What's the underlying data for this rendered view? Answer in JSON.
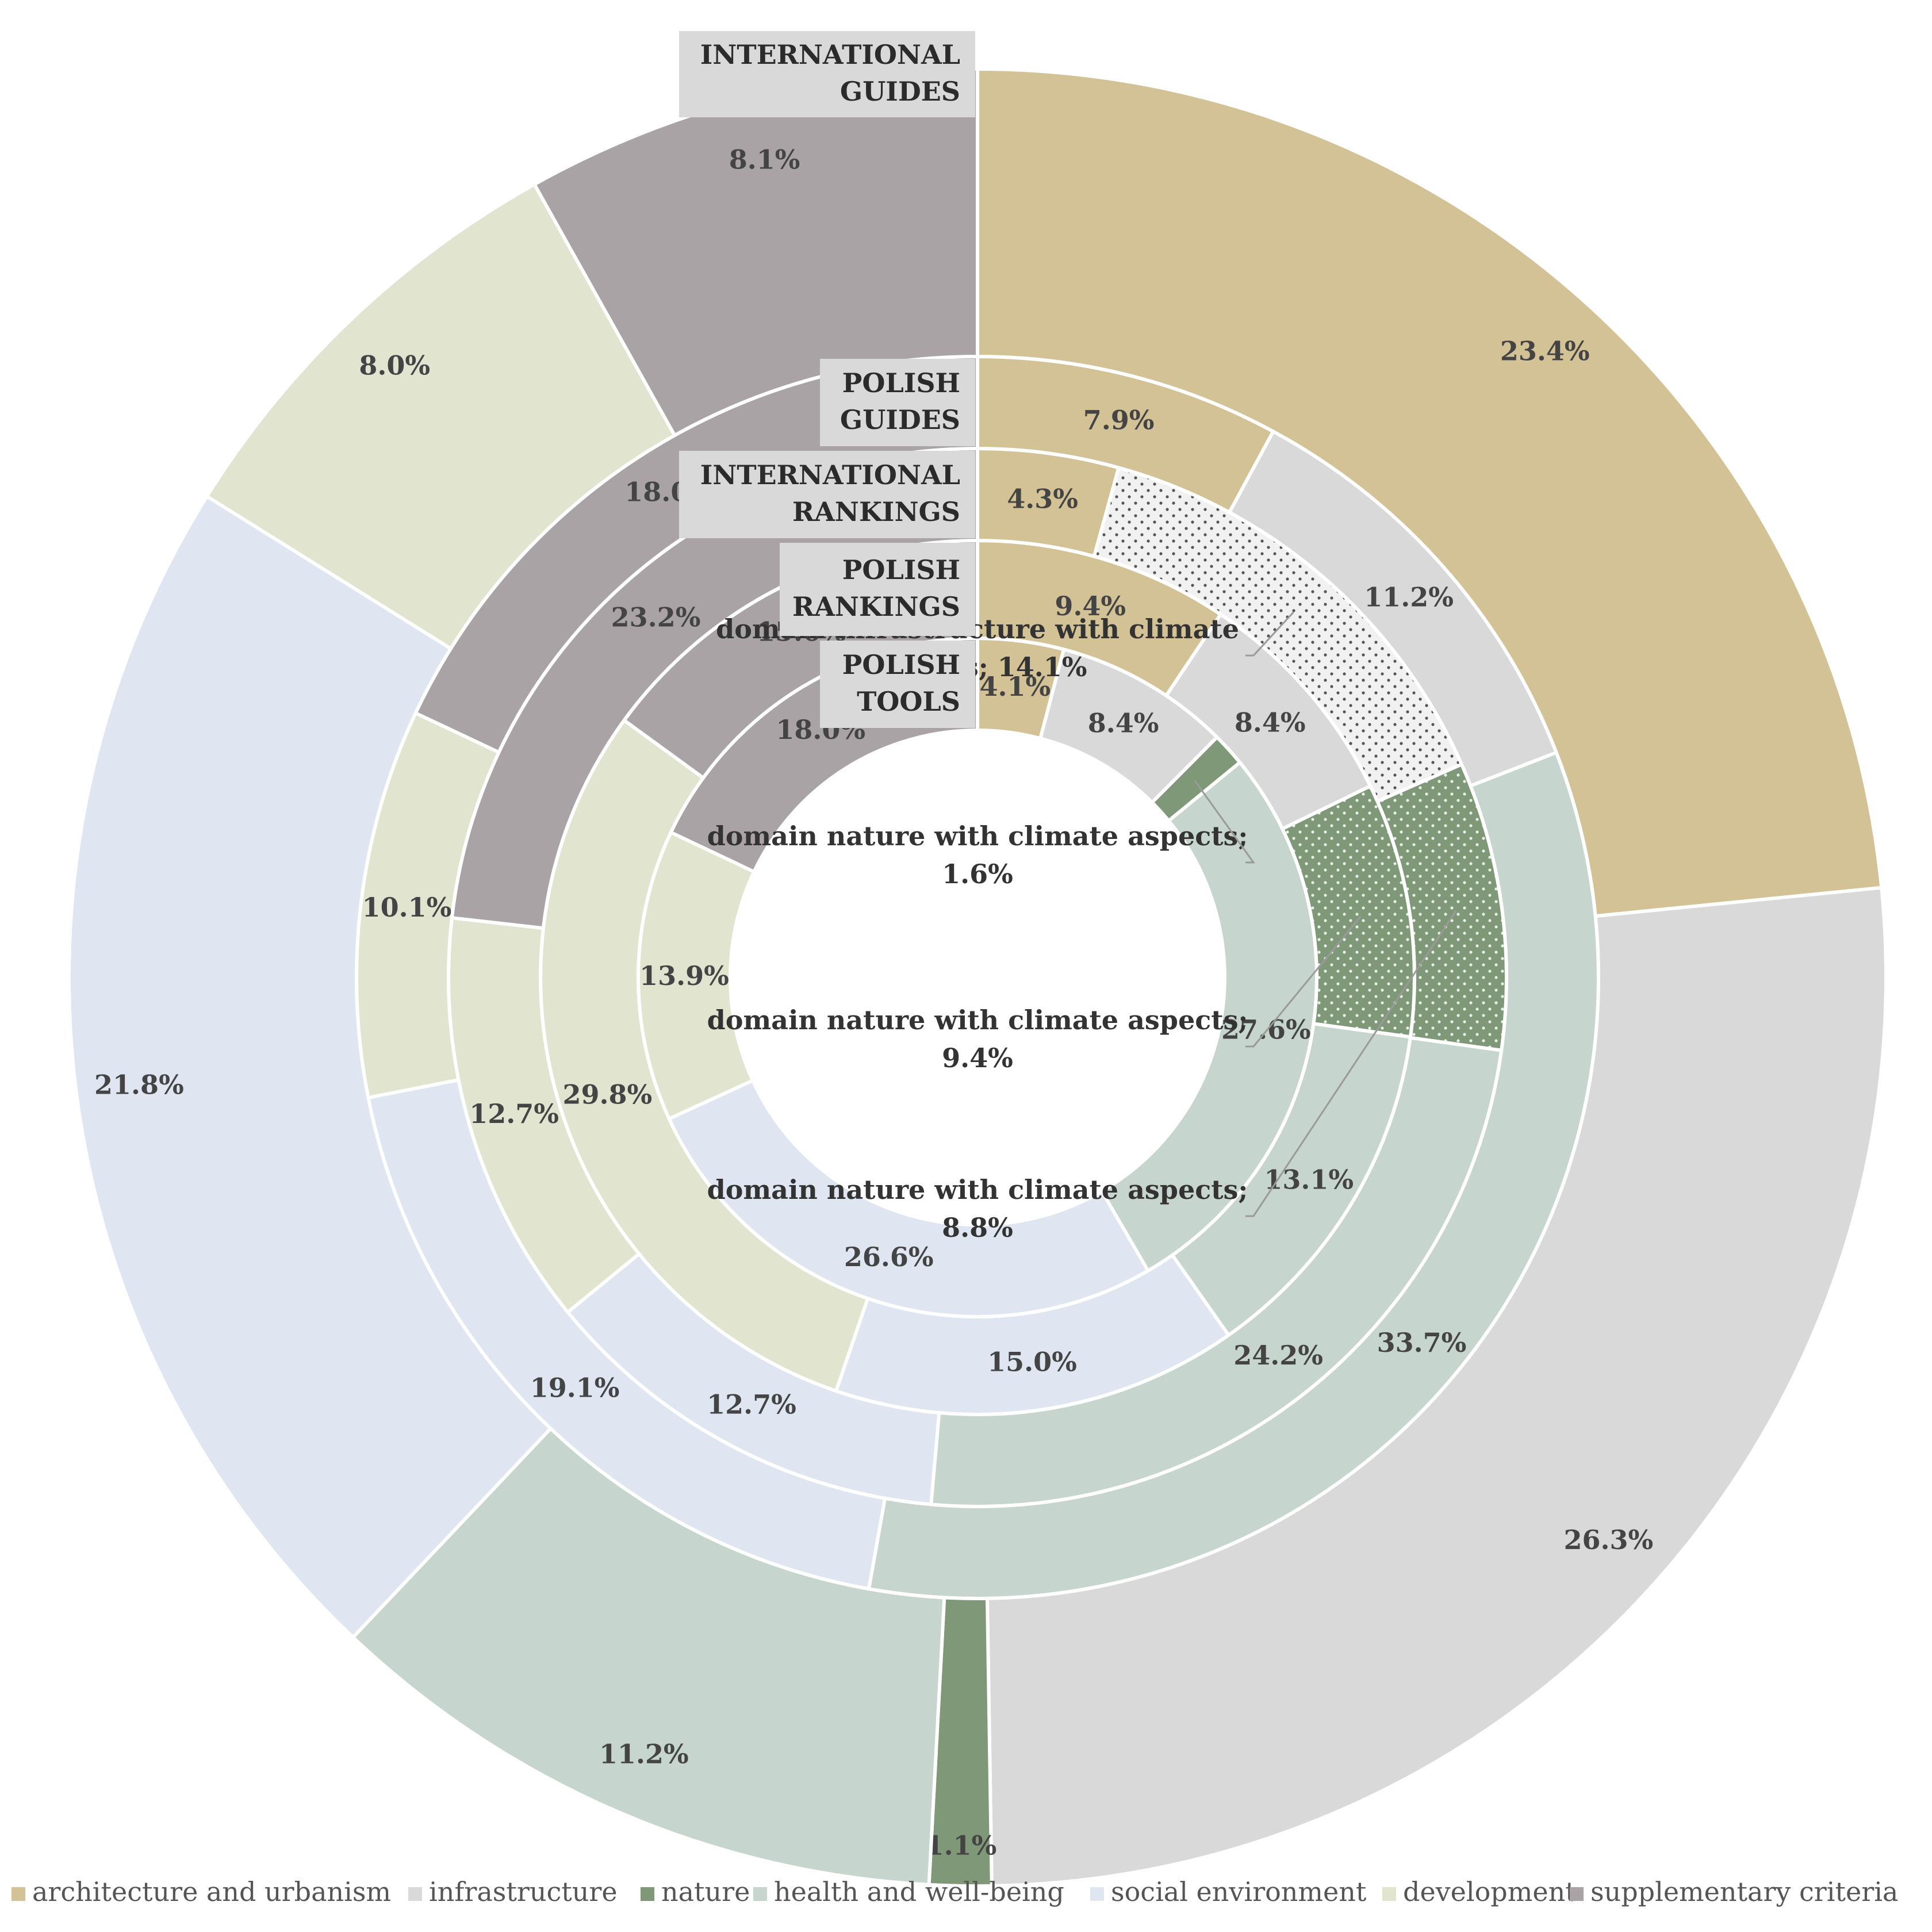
{
  "chart_data": {
    "type": "multi-ring donut",
    "legend_position": "bottom",
    "categories": [
      {
        "key": "arch",
        "name": "architecture and urbanism",
        "color": "#d3c295"
      },
      {
        "key": "infra",
        "name": "infrastructure",
        "color": "#d9d9d9"
      },
      {
        "key": "nature",
        "name": "nature",
        "color": "#7e9878"
      },
      {
        "key": "health",
        "name": "health and well-being",
        "color": "#c6d5ce"
      },
      {
        "key": "social",
        "name": "social environment",
        "color": "#dfe6f1"
      },
      {
        "key": "dev",
        "name": "development",
        "color": "#e1e4cf"
      },
      {
        "key": "supp",
        "name": "supplementary criteria",
        "color": "#a9a3a6"
      }
    ],
    "rings": [
      {
        "name_lines": [
          "POLISH",
          "TOOLS"
        ],
        "segments": [
          {
            "cat": "arch",
            "value": 4.1,
            "label": "4.1%"
          },
          {
            "cat": "infra",
            "value": 8.4,
            "label": "8.4%"
          },
          {
            "cat": "nature",
            "value": 1.6,
            "label": ""
          },
          {
            "cat": "health",
            "value": 27.6,
            "label": "27.6%"
          },
          {
            "cat": "social",
            "value": 26.6,
            "label": "26.6%"
          },
          {
            "cat": "dev",
            "value": 13.9,
            "label": "13.9%"
          },
          {
            "cat": "supp",
            "value": 18.0,
            "label": "18.0%"
          }
        ]
      },
      {
        "name_lines": [
          "POLISH",
          "RANKINGS"
        ],
        "segments": [
          {
            "cat": "arch",
            "value": 9.4,
            "label": "9.4%"
          },
          {
            "cat": "infra",
            "value": 8.4,
            "label": "8.4%"
          },
          {
            "cat": "nature",
            "value": 9.4,
            "label": "",
            "dotted": true
          },
          {
            "cat": "health",
            "value": 13.1,
            "label": "13.1%"
          },
          {
            "cat": "social",
            "value": 15.0,
            "label": "15.0%"
          },
          {
            "cat": "dev",
            "value": 29.8,
            "label": "29.8%"
          },
          {
            "cat": "supp",
            "value": 15.0,
            "label": "15.0%"
          }
        ]
      },
      {
        "name_lines": [
          "INTERNATIONAL",
          "RANKINGS"
        ],
        "segments": [
          {
            "cat": "arch",
            "value": 4.3,
            "label": "4.3%"
          },
          {
            "cat": "infra",
            "value": 14.1,
            "label": "",
            "dotted": true
          },
          {
            "cat": "nature",
            "value": 8.8,
            "label": "",
            "dotted": true
          },
          {
            "cat": "health",
            "value": 24.2,
            "label": "24.2%"
          },
          {
            "cat": "social",
            "value": 12.7,
            "label": "12.7%"
          },
          {
            "cat": "dev",
            "value": 12.7,
            "label": "12.7%"
          },
          {
            "cat": "supp",
            "value": 23.2,
            "label": "23.2%"
          }
        ]
      },
      {
        "name_lines": [
          "POLISH",
          "GUIDES"
        ],
        "segments": [
          {
            "cat": "arch",
            "value": 7.9,
            "label": "7.9%"
          },
          {
            "cat": "infra",
            "value": 11.2,
            "label": "11.2%"
          },
          {
            "cat": "health",
            "value": 33.7,
            "label": "33.7%"
          },
          {
            "cat": "social",
            "value": 19.1,
            "label": "19.1%"
          },
          {
            "cat": "dev",
            "value": 10.1,
            "label": "10.1%"
          },
          {
            "cat": "supp",
            "value": 18.0,
            "label": "18.0%"
          }
        ]
      },
      {
        "name_lines": [
          "INTERNATIONAL",
          "GUIDES"
        ],
        "segments": [
          {
            "cat": "arch",
            "value": 23.4,
            "label": "23.4%"
          },
          {
            "cat": "infra",
            "value": 26.3,
            "label": "26.3%"
          },
          {
            "cat": "nature",
            "value": 1.1,
            "label": "1.1%"
          },
          {
            "cat": "health",
            "value": 11.2,
            "label": "11.2%"
          },
          {
            "cat": "social",
            "value": 21.8,
            "label": "21.8%"
          },
          {
            "cat": "dev",
            "value": 8.0,
            "label": "8.0%"
          },
          {
            "cat": "supp",
            "value": 8.1,
            "label": "8.1%"
          }
        ]
      }
    ],
    "callouts": [
      {
        "lines": [
          "domain infrastructure with climate",
          "aspects; 14.1%"
        ],
        "ring": 2,
        "segment": 1
      },
      {
        "lines": [
          "domain nature with climate aspects;",
          "1.6%"
        ],
        "ring": 0,
        "segment": 2
      },
      {
        "lines": [
          "domain nature with climate aspects;",
          "9.4%"
        ],
        "ring": 1,
        "segment": 2
      },
      {
        "lines": [
          "domain nature with climate aspects;",
          "8.8%"
        ],
        "ring": 2,
        "segment": 2
      }
    ]
  }
}
